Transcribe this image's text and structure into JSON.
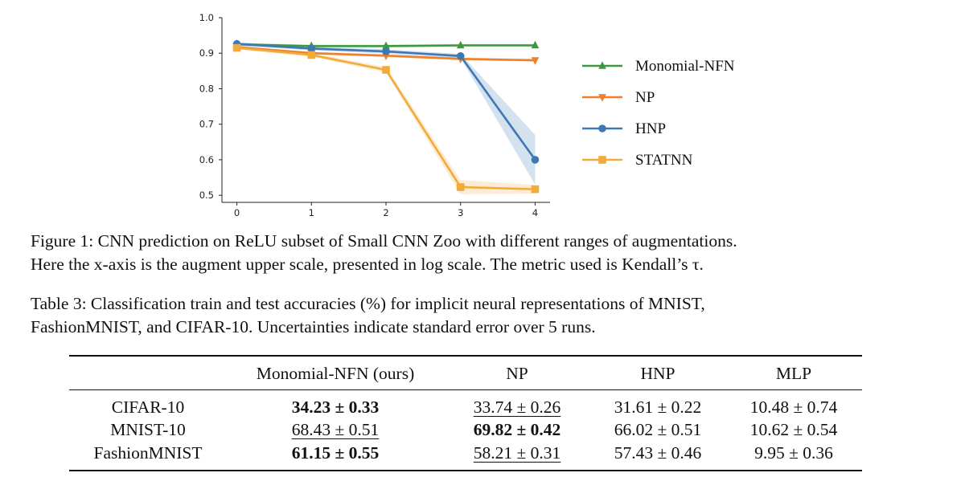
{
  "chart_data": {
    "type": "line",
    "x": [
      0,
      1,
      2,
      3,
      4
    ],
    "xlim": [
      -0.2,
      4.2
    ],
    "ylim": [
      0.48,
      1.0
    ],
    "yticks": [
      "0.5",
      "0.6",
      "0.7",
      "0.8",
      "0.9",
      "1.0"
    ],
    "xticks": [
      "0",
      "1",
      "2",
      "3",
      "4"
    ],
    "grid": false,
    "legend_position": "right",
    "series": [
      {
        "name": "Monomial-NFN",
        "values": [
          0.925,
          0.92,
          0.92,
          0.922,
          0.922
        ],
        "band": [
          0.004,
          0.004,
          0.004,
          0.004,
          0.004
        ],
        "color": "#3b9a3b",
        "marker": "triangle-up"
      },
      {
        "name": "NP",
        "values": [
          0.917,
          0.9,
          0.893,
          0.884,
          0.88
        ],
        "band": [
          0.004,
          0.004,
          0.004,
          0.004,
          0.004
        ],
        "color": "#f07f2c",
        "marker": "triangle-down"
      },
      {
        "name": "HNP",
        "values": [
          0.926,
          0.913,
          0.905,
          0.892,
          0.6
        ],
        "band": [
          0.005,
          0.005,
          0.006,
          0.006,
          0.07
        ],
        "color": "#3d78b5",
        "marker": "circle"
      },
      {
        "name": "STATNN",
        "values": [
          0.915,
          0.895,
          0.853,
          0.523,
          0.517
        ],
        "band": [
          0.005,
          0.005,
          0.008,
          0.02,
          0.012
        ],
        "color": "#f2aa3a",
        "marker": "square"
      }
    ]
  },
  "figure_caption": "Figure 1: CNN prediction on ReLU subset of Small CNN Zoo with different ranges of augmentations.",
  "figure_caption_line2": "Here the x-axis is the augment upper scale, presented in log scale. The metric used is Kendall’s τ.",
  "table_caption": "Table 3: Classification train and test accuracies (%) for implicit neural representations of MNIST,",
  "table_caption_line2": "FashionMNIST, and CIFAR-10. Uncertainties indicate standard error over 5 runs.",
  "table": {
    "headers": [
      "",
      "Monomial-NFN (ours)",
      "NP",
      "HNP",
      "MLP"
    ],
    "rows": [
      {
        "label": "CIFAR-10",
        "cells": [
          "34.23 ± 0.33",
          "33.74 ± 0.26",
          "31.61 ± 0.22",
          "10.48 ± 0.74"
        ]
      },
      {
        "label": "MNIST-10",
        "cells": [
          "68.43 ± 0.51",
          "69.82 ± 0.42",
          "66.02 ± 0.51",
          "10.62 ± 0.54"
        ]
      },
      {
        "label": "FashionMNIST",
        "cells": [
          "61.15 ± 0.55",
          "58.21 ± 0.31",
          "57.43 ± 0.46",
          "9.95 ± 0.36"
        ]
      }
    ]
  }
}
